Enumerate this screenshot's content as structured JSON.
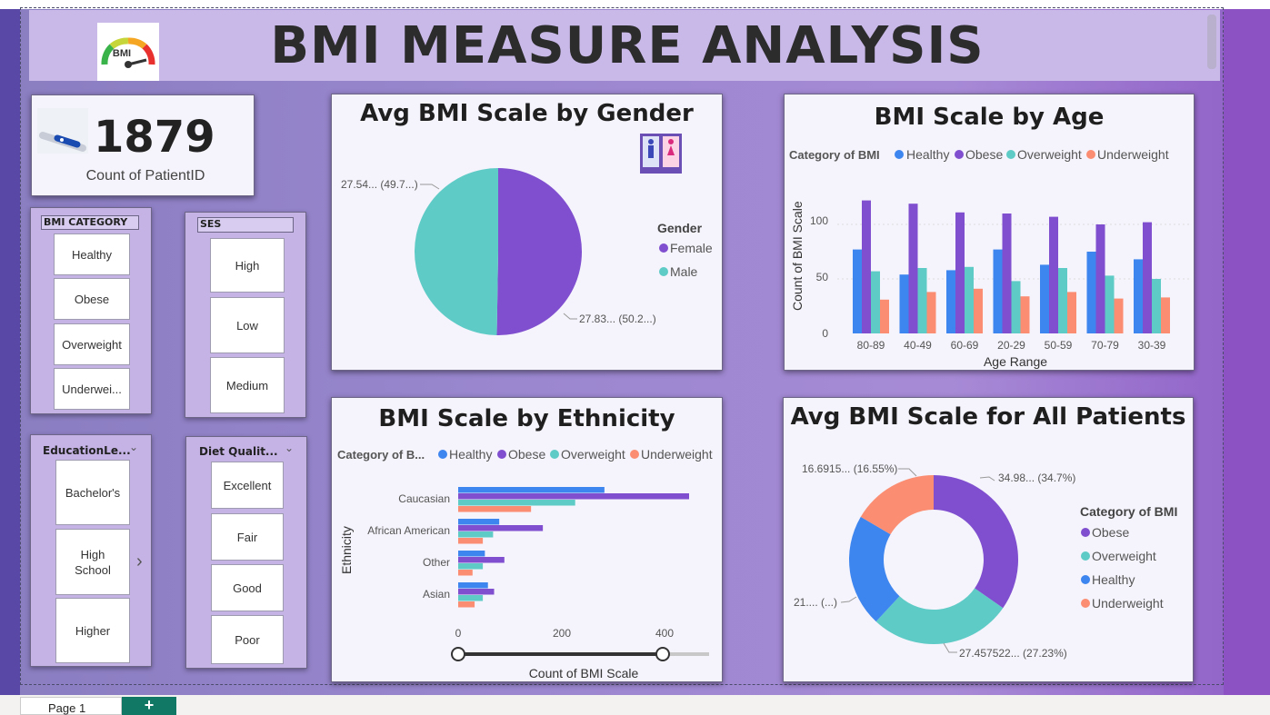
{
  "title": "BMI MEASURE ANALYSIS",
  "logo_text": "BMI",
  "kpi": {
    "value": "1879",
    "label": "Count of PatientID"
  },
  "slicers": {
    "bmi_category": {
      "header": "BMI CATEGORY",
      "items": [
        "Healthy",
        "Obese",
        "Overweight",
        "Underwei..."
      ]
    },
    "ses": {
      "header": "SES",
      "items": [
        "High",
        "Low",
        "Medium"
      ]
    },
    "education": {
      "header": "EducationLe...",
      "items": [
        "Bachelor's",
        "High School",
        "Higher"
      ]
    },
    "diet": {
      "header": "Diet Qualit...",
      "items": [
        "Excellent",
        "Fair",
        "Good",
        "Poor"
      ]
    }
  },
  "colors": {
    "healthy": "#3e86ef",
    "obese": "#7f4fcf",
    "overweight": "#5ecbc6",
    "underweight": "#fb8e72",
    "female": "#7f4fcf",
    "male": "#5ecbc6"
  },
  "chart_data": [
    {
      "type": "pie",
      "title": "Avg BMI Scale by Gender",
      "legend_title": "Gender",
      "labels": [
        "Female",
        "Male"
      ],
      "values": [
        27.83,
        27.54
      ],
      "data_labels": [
        "27.83... (50.2...)",
        "27.54... (49.7...)"
      ]
    },
    {
      "type": "bar",
      "title": "BMI Scale by Age",
      "legend_title": "Category of BMI",
      "xlabel": "Age Range",
      "ylabel": "Count of BMI Scale",
      "ylim": [
        0,
        125
      ],
      "yticks": [
        "0",
        "50",
        "100"
      ],
      "categories": [
        "80-89",
        "40-49",
        "60-69",
        "20-29",
        "50-59",
        "70-79",
        "30-39"
      ],
      "series": [
        {
          "name": "Healthy",
          "values": [
            77,
            54,
            58,
            77,
            63,
            75,
            68
          ]
        },
        {
          "name": "Obese",
          "values": [
            122,
            119,
            111,
            110,
            107,
            100,
            102
          ]
        },
        {
          "name": "Overweight",
          "values": [
            57,
            60,
            61,
            48,
            60,
            53,
            50
          ]
        },
        {
          "name": "Underweight",
          "values": [
            31,
            38,
            41,
            34,
            38,
            32,
            33
          ]
        }
      ]
    },
    {
      "type": "bar",
      "orientation": "horizontal",
      "title": "BMI Scale by Ethnicity",
      "legend_title": "Category of B...",
      "xlabel": "Count of BMI Scale",
      "ylabel": "Ethnicity",
      "xlim": [
        0,
        450
      ],
      "xticks": [
        "0",
        "200",
        "400"
      ],
      "categories": [
        "Caucasian",
        "African American",
        "Other",
        "Asian"
      ],
      "series": [
        {
          "name": "Healthy",
          "values": [
            285,
            80,
            52,
            58
          ]
        },
        {
          "name": "Obese",
          "values": [
            450,
            165,
            90,
            70
          ]
        },
        {
          "name": "Overweight",
          "values": [
            228,
            68,
            48,
            48
          ]
        },
        {
          "name": "Underweight",
          "values": [
            142,
            48,
            28,
            32
          ]
        }
      ]
    },
    {
      "type": "pie",
      "subtype": "donut",
      "title": "Avg BMI Scale for All Patients",
      "legend_title": "Category of BMI",
      "labels": [
        "Obese",
        "Overweight",
        "Healthy",
        "Underweight"
      ],
      "values": [
        34.7,
        27.23,
        21.52,
        16.55
      ],
      "data_labels": [
        "34.98... (34.7%)",
        "27.457522... (27.23%)",
        "21.... (...)",
        "16.6915... (16.55%)"
      ]
    }
  ],
  "bottom": {
    "page_tab": "Page 1",
    "add_page": "+"
  }
}
